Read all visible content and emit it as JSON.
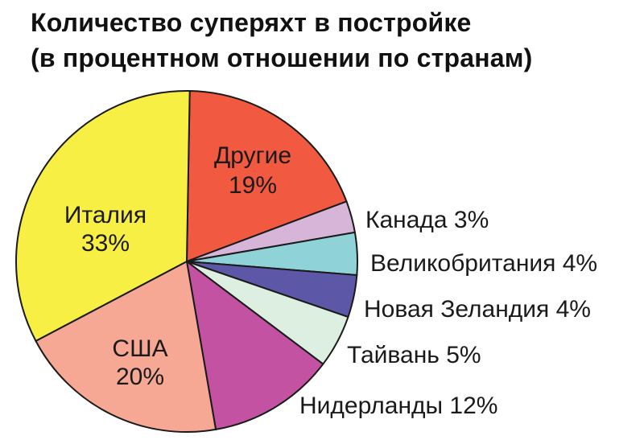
{
  "chart_data": {
    "type": "pie",
    "title_lines": [
      "Количество суперяхт в постройке",
      "(в процентном отношении по странам)"
    ],
    "slices": [
      {
        "label": "Другие",
        "value": 19,
        "value_label": "19%",
        "color": "#f15a40",
        "label_inside": true
      },
      {
        "label": "Канада",
        "value": 3,
        "value_label": "3%",
        "color": "#d7b5d8",
        "label_inside": false
      },
      {
        "label": "Великобритания",
        "value": 4,
        "value_label": "4%",
        "color": "#8fd3d8",
        "label_inside": false
      },
      {
        "label": "Новая Зеландия",
        "value": 4,
        "value_label": "4%",
        "color": "#5d57a8",
        "label_inside": false
      },
      {
        "label": "Тайвань",
        "value": 5,
        "value_label": "5%",
        "color": "#dcefe1",
        "label_inside": false
      },
      {
        "label": "Нидерланды",
        "value": 12,
        "value_label": "12%",
        "color": "#c352a3",
        "label_inside": false
      },
      {
        "label": "США",
        "value": 20,
        "value_label": "20%",
        "color": "#f6a895",
        "label_inside": true
      },
      {
        "label": "Италия",
        "value": 33,
        "value_label": "33%",
        "color": "#f8ef45",
        "label_inside": true
      }
    ]
  }
}
